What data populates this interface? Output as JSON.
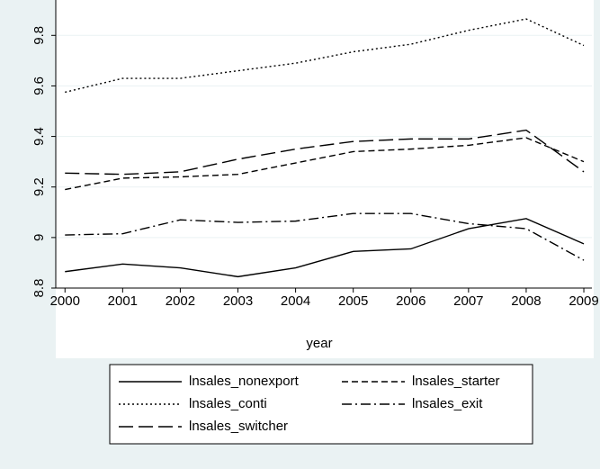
{
  "chart_data": {
    "type": "line",
    "xlabel": "year",
    "x": [
      2000,
      2001,
      2002,
      2003,
      2004,
      2005,
      2006,
      2007,
      2008,
      2009
    ],
    "xlim": [
      1999.84,
      2009.14
    ],
    "xticks": [
      2000,
      2001,
      2002,
      2003,
      2004,
      2005,
      2006,
      2007,
      2008,
      2009
    ],
    "ylim": [
      8.8,
      9.94
    ],
    "yticks": [
      8.8,
      9,
      9.2,
      9.4,
      9.6,
      9.8
    ],
    "grid": true,
    "legend": "bottom",
    "series": [
      {
        "name": "lnsales_nonexport",
        "color": "#000000",
        "dash": "solid",
        "values": [
          8.865,
          8.895,
          8.88,
          8.845,
          8.88,
          8.945,
          8.955,
          9.035,
          9.075,
          8.975
        ]
      },
      {
        "name": "lnsales_starter",
        "color": "#000000",
        "dash": "dash",
        "values": [
          9.19,
          9.235,
          9.24,
          9.25,
          9.295,
          9.34,
          9.35,
          9.365,
          9.395,
          9.3
        ]
      },
      {
        "name": "lnsales_conti",
        "color": "#000000",
        "dash": "dot",
        "values": [
          9.575,
          9.63,
          9.63,
          9.66,
          9.69,
          9.735,
          9.765,
          9.82,
          9.865,
          9.76
        ]
      },
      {
        "name": "lnsales_exit",
        "color": "#000000",
        "dash": "dashdot",
        "values": [
          9.01,
          9.015,
          9.07,
          9.06,
          9.065,
          9.095,
          9.095,
          9.055,
          9.035,
          8.91
        ]
      },
      {
        "name": "lnsales_switcher",
        "color": "#000000",
        "dash": "longdash",
        "values": [
          9.255,
          9.25,
          9.26,
          9.31,
          9.35,
          9.38,
          9.39,
          9.39,
          9.425,
          9.26
        ]
      }
    ]
  }
}
